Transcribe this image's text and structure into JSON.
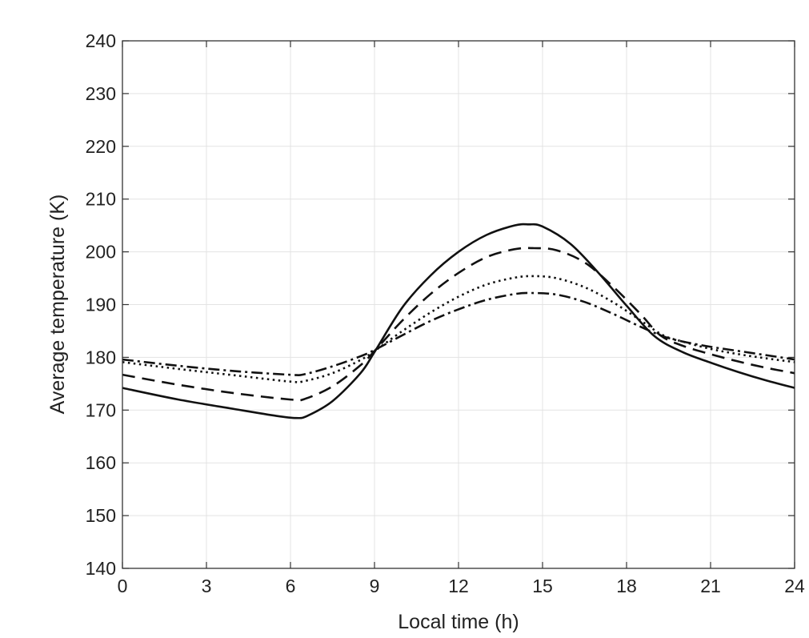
{
  "chart_data": {
    "type": "line",
    "title": "",
    "xlabel": "Local time (h)",
    "ylabel": "Average temperature (K)",
    "xlim": [
      0,
      24
    ],
    "ylim": [
      140,
      240
    ],
    "xticks": [
      0,
      3,
      6,
      9,
      12,
      15,
      18,
      21,
      24
    ],
    "yticks": [
      140,
      150,
      160,
      170,
      180,
      190,
      200,
      210,
      220,
      230,
      240
    ],
    "grid": true,
    "legend": "none",
    "series": [
      {
        "style": "solid",
        "color": "#111111",
        "points": [
          [
            0,
            174.2
          ],
          [
            2,
            172.0
          ],
          [
            4,
            170.2
          ],
          [
            5.5,
            168.9
          ],
          [
            6.2,
            168.5
          ],
          [
            6.6,
            168.9
          ],
          [
            7.5,
            171.7
          ],
          [
            8.5,
            177.0
          ],
          [
            9,
            181.0
          ],
          [
            10,
            189.5
          ],
          [
            11,
            195.5
          ],
          [
            12,
            200.0
          ],
          [
            13,
            203.2
          ],
          [
            14,
            205.0
          ],
          [
            14.5,
            205.2
          ],
          [
            15,
            204.8
          ],
          [
            16,
            201.5
          ],
          [
            17,
            196.0
          ],
          [
            18,
            189.8
          ],
          [
            19,
            184.0
          ],
          [
            20,
            181.0
          ],
          [
            21,
            179.0
          ],
          [
            22,
            177.2
          ],
          [
            23,
            175.6
          ],
          [
            24,
            174.2
          ]
        ]
      },
      {
        "style": "dashed",
        "color": "#111111",
        "points": [
          [
            0,
            176.7
          ],
          [
            2,
            174.8
          ],
          [
            4,
            173.2
          ],
          [
            6,
            172.0
          ],
          [
            6.5,
            172.1
          ],
          [
            7.5,
            174.5
          ],
          [
            8.5,
            178.5
          ],
          [
            9,
            181.2
          ],
          [
            10,
            187.0
          ],
          [
            11,
            192.0
          ],
          [
            12,
            196.0
          ],
          [
            13,
            199.0
          ],
          [
            14,
            200.5
          ],
          [
            14.7,
            200.7
          ],
          [
            15.5,
            200.3
          ],
          [
            16.5,
            198.0
          ],
          [
            17.5,
            193.5
          ],
          [
            18.5,
            188.2
          ],
          [
            19.2,
            184.2
          ],
          [
            20,
            182.2
          ],
          [
            21,
            180.6
          ],
          [
            22,
            179.2
          ],
          [
            23,
            178.0
          ],
          [
            24,
            177.0
          ]
        ]
      },
      {
        "style": "dotted",
        "color": "#111111",
        "points": [
          [
            0,
            179.1
          ],
          [
            2,
            177.8
          ],
          [
            4,
            176.6
          ],
          [
            6,
            175.4
          ],
          [
            6.5,
            175.5
          ],
          [
            7.5,
            177.0
          ],
          [
            8.5,
            179.5
          ],
          [
            9,
            181.2
          ],
          [
            10,
            185.0
          ],
          [
            11,
            188.5
          ],
          [
            12,
            191.5
          ],
          [
            13,
            193.8
          ],
          [
            14,
            195.1
          ],
          [
            14.7,
            195.4
          ],
          [
            15.5,
            195.0
          ],
          [
            16.5,
            193.3
          ],
          [
            17.5,
            190.5
          ],
          [
            18.5,
            187.0
          ],
          [
            19.3,
            184.2
          ],
          [
            20,
            183.0
          ],
          [
            21,
            181.6
          ],
          [
            22,
            180.6
          ],
          [
            23,
            179.8
          ],
          [
            24,
            179.1
          ]
        ]
      },
      {
        "style": "dash-dot",
        "color": "#111111",
        "points": [
          [
            0,
            179.6
          ],
          [
            2,
            178.4
          ],
          [
            4,
            177.4
          ],
          [
            6,
            176.7
          ],
          [
            6.5,
            176.8
          ],
          [
            7.5,
            178.3
          ],
          [
            8.5,
            180.2
          ],
          [
            9,
            181.4
          ],
          [
            10,
            184.2
          ],
          [
            11,
            186.9
          ],
          [
            12,
            189.1
          ],
          [
            13,
            190.9
          ],
          [
            14,
            192.0
          ],
          [
            14.6,
            192.2
          ],
          [
            15.5,
            191.9
          ],
          [
            16.5,
            190.5
          ],
          [
            17.5,
            188.3
          ],
          [
            18.5,
            185.8
          ],
          [
            19.3,
            184.0
          ],
          [
            20,
            183.0
          ],
          [
            21,
            182.0
          ],
          [
            22,
            181.2
          ],
          [
            23,
            180.4
          ],
          [
            24,
            179.6
          ]
        ]
      }
    ]
  }
}
